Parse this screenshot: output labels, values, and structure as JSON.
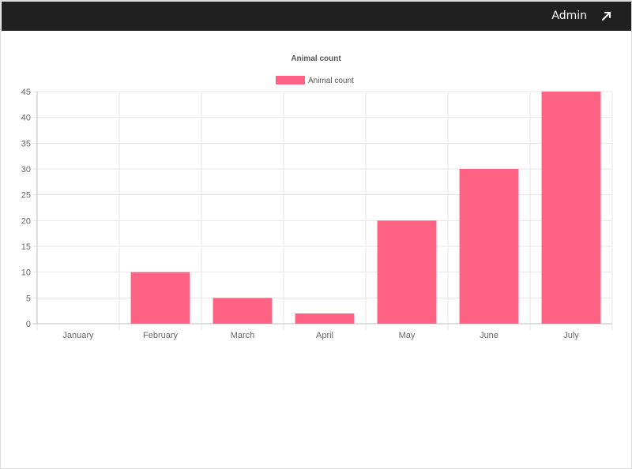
{
  "header": {
    "user_label": "Admin",
    "link_icon": "arrow-up-right-icon",
    "background_color": "#202020"
  },
  "chart_data": {
    "type": "bar",
    "title": "Animal count",
    "categories": [
      "January",
      "February",
      "March",
      "April",
      "May",
      "June",
      "July"
    ],
    "series": [
      {
        "name": "Animal count",
        "values": [
          0,
          10,
          5,
          2,
          20,
          30,
          45
        ],
        "color": "#ff6384"
      }
    ],
    "ylim": [
      0,
      45
    ],
    "yticks": [
      0,
      5,
      10,
      15,
      20,
      25,
      30,
      35,
      40,
      45
    ],
    "grid": true,
    "legend": "top-center"
  }
}
